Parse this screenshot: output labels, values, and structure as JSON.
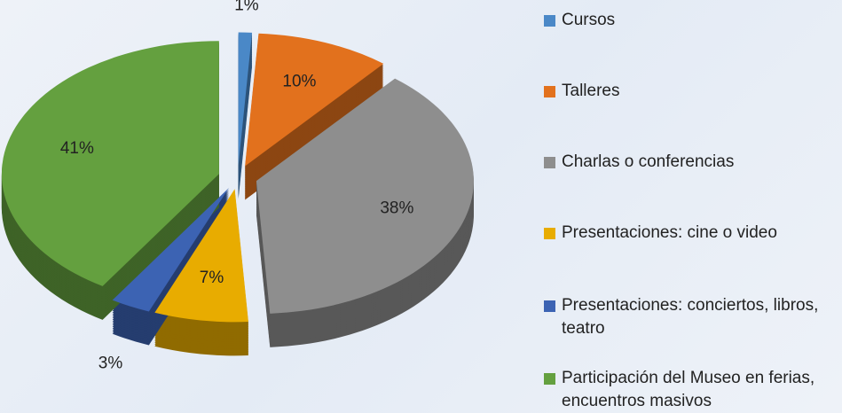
{
  "chart_data": {
    "type": "pie",
    "categories": [
      "Cursos",
      "Talleres",
      "Charlas o conferencias",
      "Presentaciones: cine o video",
      "Presentaciones: conciertos, libros, teatro",
      "Participación del Museo en ferias, encuentros masivos"
    ],
    "values": [
      1,
      10,
      38,
      7,
      3,
      41
    ],
    "value_labels": [
      "1%",
      "10%",
      "38%",
      "7%",
      "3%",
      "41%"
    ],
    "colors": [
      "#4a88c7",
      "#e2711d",
      "#8e8e8e",
      "#e8ac00",
      "#3c63b3",
      "#64a03f"
    ]
  }
}
